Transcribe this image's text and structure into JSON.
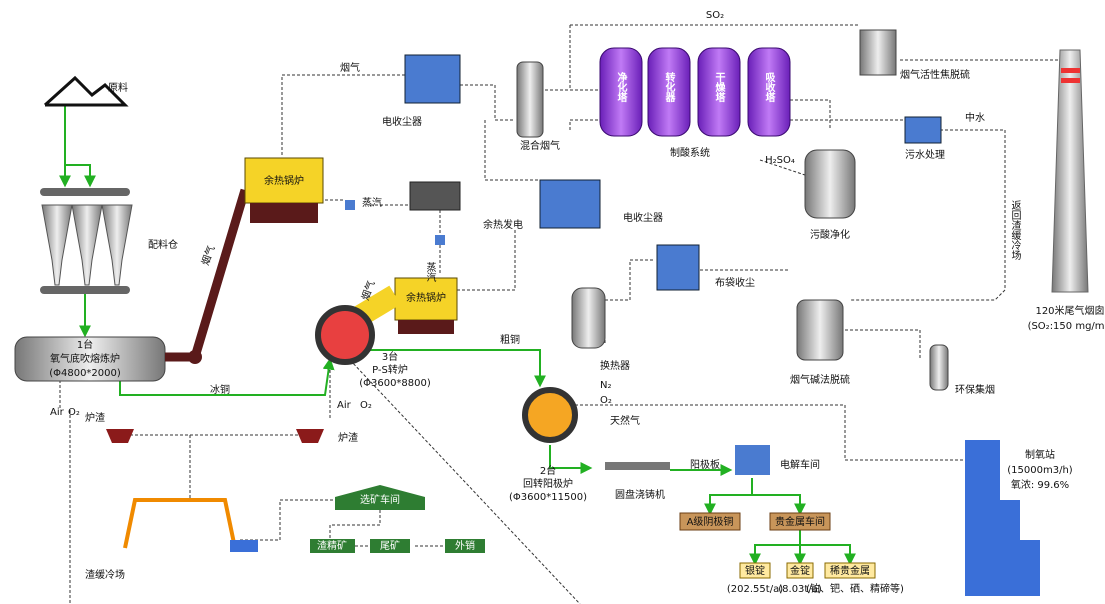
{
  "raw_material": "原料",
  "batching_bin": "配料仓",
  "smelter": {
    "count": "1台",
    "name": "氧气底吹熔炼炉",
    "size": "(Φ4800*2000)",
    "air": "Air",
    "oxygen": "O₂"
  },
  "slag_1": "炉渣",
  "slag_2": "炉渣",
  "matte": "冰铜",
  "flue_gas_1": "烟气",
  "boiler_1": "余热锅炉",
  "steam_1": "蒸汽",
  "power": "余热发电",
  "flue_gas_2": "烟气",
  "esp_1": "电收尘器",
  "mixed_gas": "混合烟气",
  "towers": [
    "净化塔",
    "转化器",
    "干燥塔",
    "吸收塔"
  ],
  "acid_system": "制酸系统",
  "so2": "SO₂",
  "h2so4": "H₂SO₄",
  "coke_desulf": "烟气活性焦脱硫",
  "reclaimed_water": "中水",
  "wastewater": "污水处理",
  "acid_purify": "污酸净化",
  "return_slag": "返回渣缓冷场",
  "stack": "120米尾气烟囱",
  "stack_note": "(SO₂:150 mg/m³)",
  "esp_2": "电收尘器",
  "boiler_2": "余热锅炉",
  "flue_gas_3": "烟气",
  "steam_2": "蒸汽",
  "converter": {
    "count": "3台",
    "name": "P-S转炉",
    "size": "(Φ3600*8800)",
    "air": "Air",
    "oxygen": "O₂"
  },
  "blister": "粗铜",
  "heat_exchanger": "换热器",
  "baghouse": "布袋收尘",
  "alkali_desulf": "烟气碱法脱硫",
  "env_fume": "环保集烟",
  "anode_furnace": {
    "count": "2台",
    "name": "回转阳极炉",
    "size": "(Φ3600*11500)",
    "n2": "N₂",
    "oxygen": "O₂",
    "gas": "天然气"
  },
  "oxygen_station": {
    "name": "制氧站",
    "capacity": "(15000m3/h)",
    "purity": "氧浓: 99.6%"
  },
  "casting": "圆盘浇铸机",
  "anode": "阳极板",
  "electrolysis": "电解车间",
  "cathode": "A级阴极铜",
  "precious": "贵金属车间",
  "products": [
    {
      "name": "银锭",
      "output": "(202.55t/a)"
    },
    {
      "name": "金锭",
      "output": "(8.03t/a)"
    },
    {
      "name": "稀贵金属",
      "output": "(铂、钯、硒、精碲等)"
    }
  ],
  "beneficiation": "选矿车间",
  "slag_concentrate": "渣精矿",
  "tailings": "尾矿",
  "sale": "外销",
  "slag_cooling": "渣缓冷场"
}
